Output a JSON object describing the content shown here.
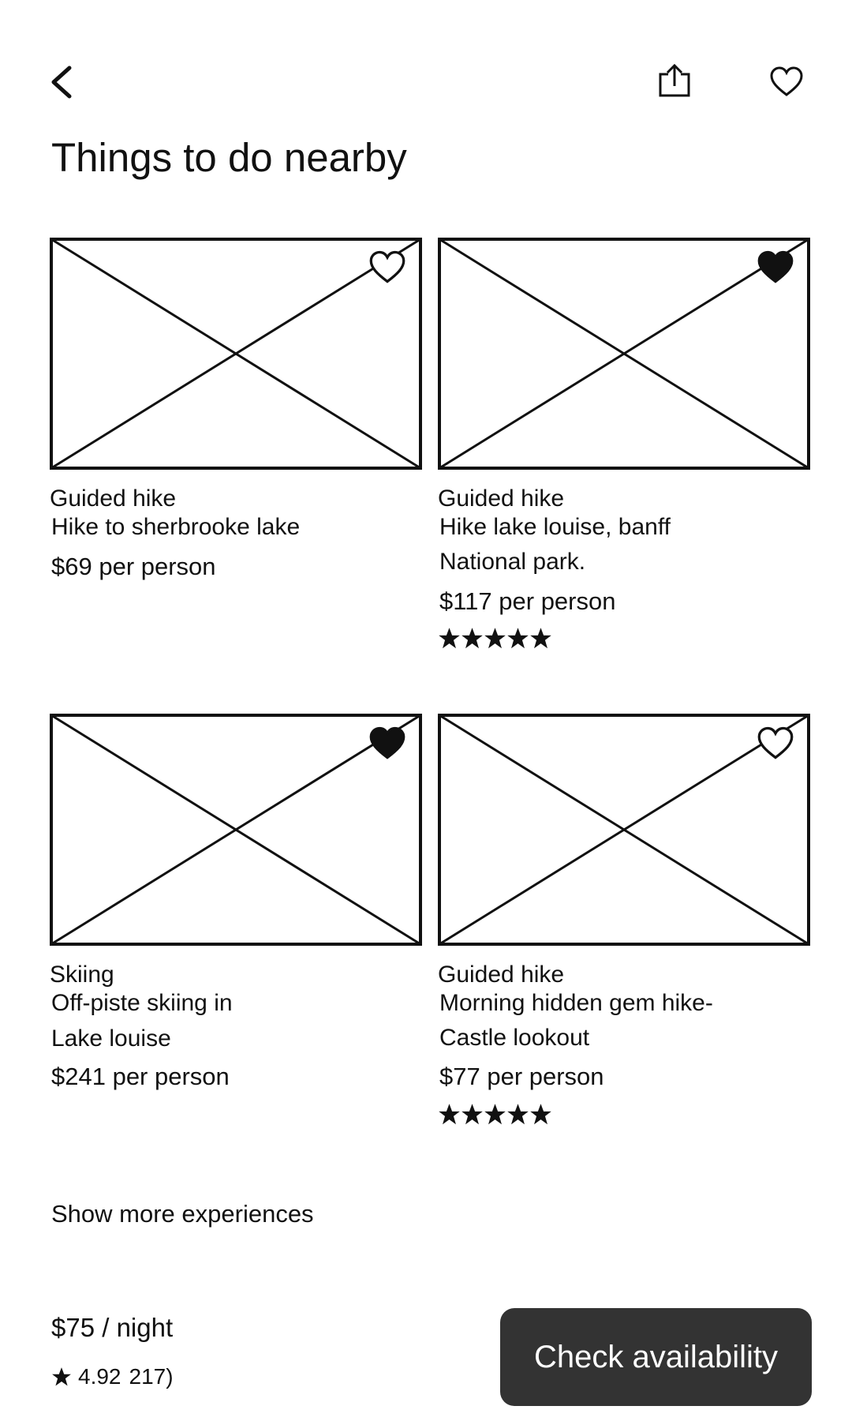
{
  "header": {
    "back_icon": "chevron-left-icon",
    "share_icon": "share-icon",
    "favorite_icon": "heart-outline-icon"
  },
  "section": {
    "title": "Things to do nearby"
  },
  "experiences": [
    {
      "category": "Guided hike",
      "name_lines": [
        "Hike to sherbrooke lake"
      ],
      "price": "$69 per person",
      "favorited": false,
      "stars": 0
    },
    {
      "category": "Guided hike",
      "name_lines": [
        "Hike lake louise, banff",
        "National park."
      ],
      "price": "$117 per person",
      "favorited": true,
      "stars": 5
    },
    {
      "category": "Skiing",
      "name_lines": [
        "Off-piste skiing in",
        "Lake louise"
      ],
      "price": "$241 per person",
      "favorited": true,
      "stars": 0
    },
    {
      "category": "Guided hike",
      "name_lines": [
        "Morning hidden gem hike-",
        "Castle lookout"
      ],
      "price": "$77 per person",
      "favorited": false,
      "stars": 5
    }
  ],
  "show_more": {
    "label": "Show more experiences"
  },
  "footer": {
    "price_per_night": "$75 / night",
    "rating": "4.92",
    "review_count": "217)",
    "cta_label": "Check availability"
  }
}
